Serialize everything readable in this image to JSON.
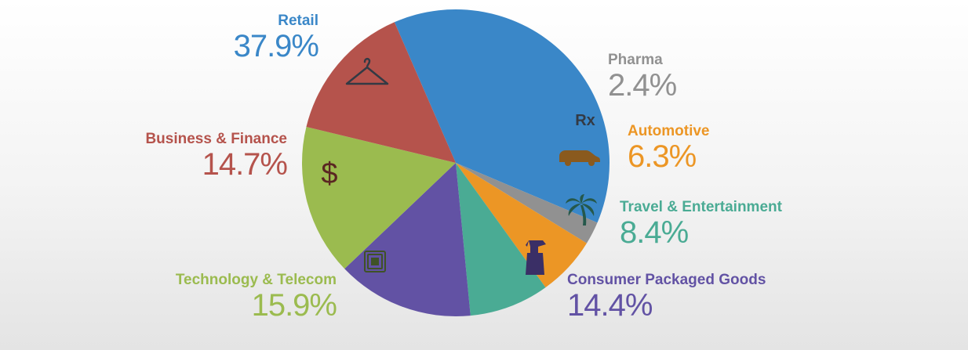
{
  "chart_data": {
    "type": "pie",
    "start_angle_deg": -113.5,
    "direction": "clockwise",
    "slices": [
      {
        "label": "Retail",
        "value": 37.9,
        "value_label": "37.9%",
        "color": "#3a87c8",
        "icon": "hanger-icon"
      },
      {
        "label": "Pharma",
        "value": 2.4,
        "value_label": "2.4%",
        "color": "#919191",
        "icon": "rx-icon"
      },
      {
        "label": "Automotive",
        "value": 6.3,
        "value_label": "6.3%",
        "color": "#ec9625",
        "icon": "van-icon"
      },
      {
        "label": "Travel & Entertainment",
        "value": 8.4,
        "value_label": "8.4%",
        "color": "#4aab94",
        "icon": "palm-tree-icon"
      },
      {
        "label": "Consumer Packaged Goods",
        "value": 14.4,
        "value_label": "14.4%",
        "color": "#6252a4",
        "icon": "spray-bottle-icon"
      },
      {
        "label": "Technology & Telecom",
        "value": 15.9,
        "value_label": "15.9%",
        "color": "#9bbb4f",
        "icon": "chip-icon"
      },
      {
        "label": "Business & Finance",
        "value": 14.7,
        "value_label": "14.7%",
        "color": "#b5534c",
        "icon": "dollar-icon"
      }
    ],
    "icon_color": "#333a44",
    "rx_text": "Rx",
    "dollar_text": "$"
  }
}
